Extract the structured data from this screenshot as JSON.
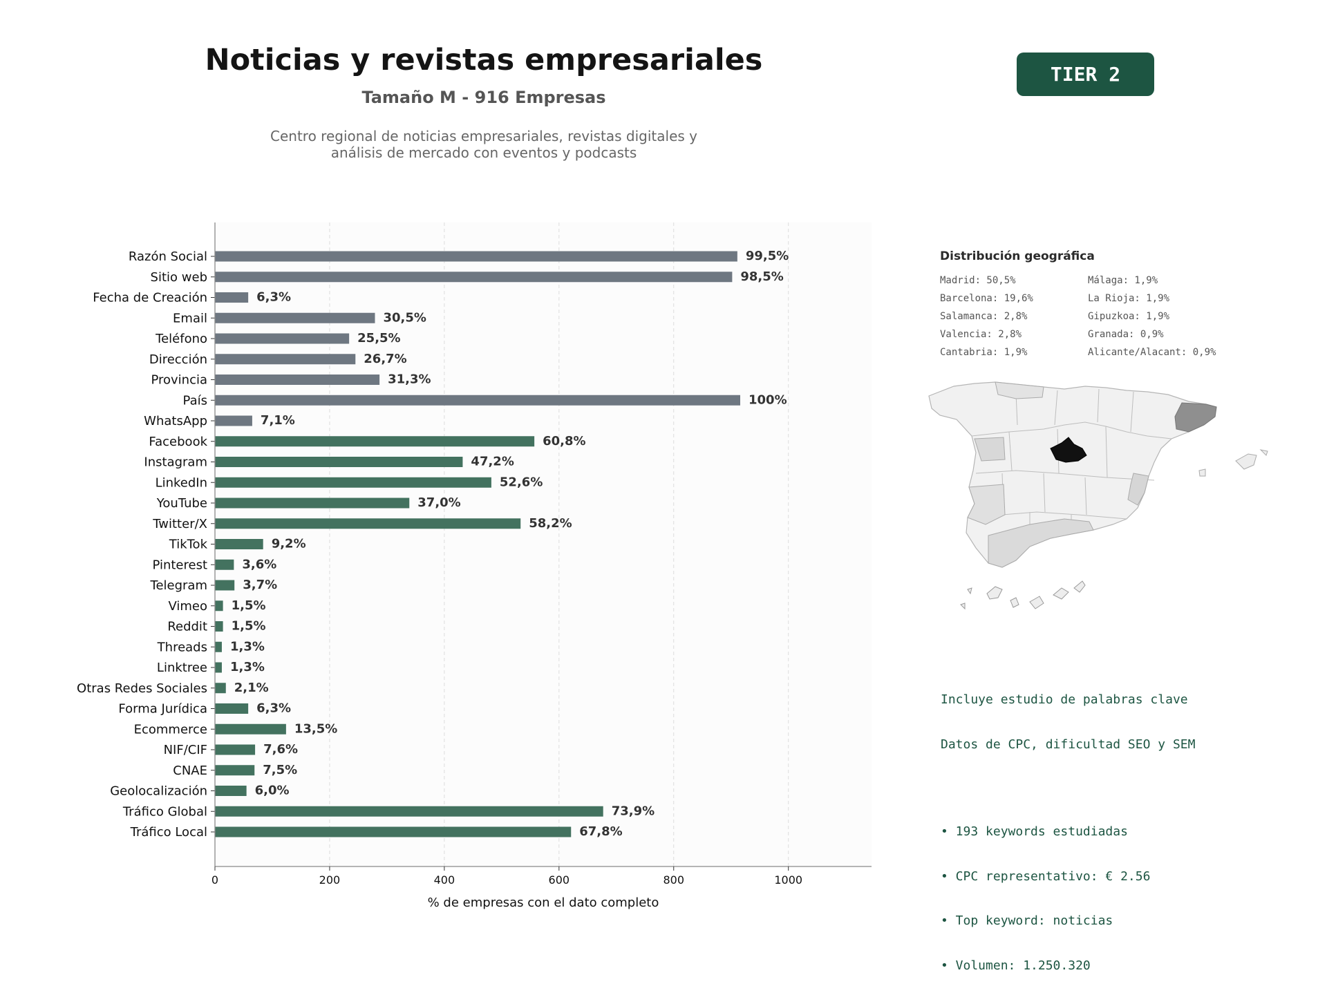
{
  "header": {
    "title": "Noticias y revistas empresariales",
    "subtitle": "Tamaño M - 916 Empresas",
    "description_lines": [
      "Centro regional de noticias empresariales, revistas digitales y",
      "análisis de mercado con eventos y podcasts"
    ],
    "tier_label": "TIER 2"
  },
  "colors": {
    "basic_fields": "#6e7781",
    "digital_fields": "#43725f",
    "badge": "#1d5542",
    "map_highlight": "#111111"
  },
  "chart_data": {
    "type": "bar",
    "orientation": "horizontal",
    "xlabel": "% de empresas con el dato completo",
    "xlim": [
      0,
      1145
    ],
    "xticks": [
      0,
      200,
      400,
      600,
      800,
      1000
    ],
    "grid": true,
    "categories": [
      "Razón Social",
      "Sitio web",
      "Fecha de Creación",
      "Email",
      "Teléfono",
      "Dirección",
      "Provincia",
      "País",
      "WhatsApp",
      "Facebook",
      "Instagram",
      "LinkedIn",
      "YouTube",
      "Twitter/X",
      "TikTok",
      "Pinterest",
      "Telegram",
      "Vimeo",
      "Reddit",
      "Threads",
      "Linktree",
      "Otras Redes Sociales",
      "Forma Jurídica",
      "Ecommerce",
      "NIF/CIF",
      "CNAE",
      "Geolocalización",
      "Tráfico Global",
      "Tráfico Local"
    ],
    "values": [
      911,
      902,
      58,
      279,
      234,
      245,
      287,
      916,
      65,
      557,
      432,
      482,
      339,
      533,
      84,
      33,
      34,
      14,
      14,
      12,
      12,
      19,
      58,
      124,
      70,
      69,
      55,
      677,
      621
    ],
    "labels": [
      "99,5%",
      "98,5%",
      "6,3%",
      "30,5%",
      "25,5%",
      "26,7%",
      "31,3%",
      "100%",
      "7,1%",
      "60,8%",
      "47,2%",
      "52,6%",
      "37,0%",
      "58,2%",
      "9,2%",
      "3,6%",
      "3,7%",
      "1,5%",
      "1,5%",
      "1,3%",
      "1,3%",
      "2,1%",
      "6,3%",
      "13,5%",
      "7,6%",
      "7,5%",
      "6,0%",
      "73,9%",
      "67,8%"
    ],
    "groups": [
      "basic",
      "basic",
      "basic",
      "basic",
      "basic",
      "basic",
      "basic",
      "basic",
      "basic",
      "digital",
      "digital",
      "digital",
      "digital",
      "digital",
      "digital",
      "digital",
      "digital",
      "digital",
      "digital",
      "digital",
      "digital",
      "digital",
      "digital",
      "digital",
      "digital",
      "digital",
      "digital",
      "digital",
      "digital"
    ]
  },
  "geo": {
    "title": "Distribución geográfica",
    "col1": [
      "Madrid: 50,5%",
      "Barcelona: 19,6%",
      "Salamanca: 2,8%",
      "Valencia: 2,8%",
      "Cantabria: 1,9%"
    ],
    "col2": [
      "Málaga: 1,9%",
      "La Rioja: 1,9%",
      "Gipuzkoa: 1,9%",
      "Granada: 0,9%",
      "Alicante/Alacant: 0,9%"
    ]
  },
  "keywords": {
    "intro_lines": [
      "Incluye estudio de palabras clave",
      "Datos de CPC, dificultad SEO y SEM"
    ],
    "bullets": [
      "• 193 keywords estudiadas",
      "• CPC representativo: € 2.56",
      "• Top keyword: noticias",
      "• Volumen: 1.250.320"
    ]
  }
}
